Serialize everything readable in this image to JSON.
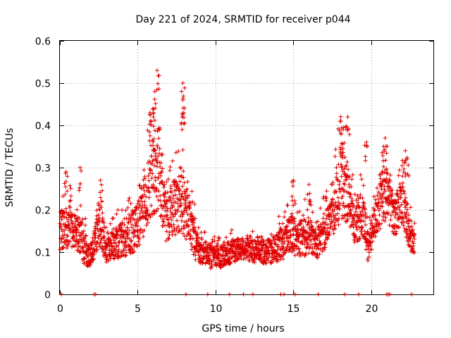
{
  "chart_data": {
    "type": "scatter",
    "title": "Day 221 of 2024, SRMTID for receiver p044",
    "xlabel": "GPS time / hours",
    "ylabel": "SRMTID / TECUs",
    "xlim": [
      0,
      24
    ],
    "ylim": [
      0,
      0.6
    ],
    "xticks": [
      "0",
      "5",
      "10",
      "15",
      "20"
    ],
    "yticks": [
      "0",
      "0.1",
      "0.2",
      "0.3",
      "0.4",
      "0.5",
      "0.6"
    ],
    "grid": true,
    "marker": "+",
    "color": "#e00000",
    "series": [
      {
        "name": "SRMTID",
        "profile": [
          [
            0.0,
            0.15,
            0.05
          ],
          [
            0.5,
            0.16,
            0.06
          ],
          [
            1.0,
            0.15,
            0.05
          ],
          [
            1.5,
            0.12,
            0.05
          ],
          [
            1.8,
            0.09,
            0.03
          ],
          [
            2.1,
            0.1,
            0.03
          ],
          [
            2.5,
            0.17,
            0.06
          ],
          [
            3.0,
            0.11,
            0.04
          ],
          [
            3.5,
            0.12,
            0.04
          ],
          [
            4.0,
            0.13,
            0.05
          ],
          [
            4.5,
            0.14,
            0.05
          ],
          [
            5.0,
            0.16,
            0.06
          ],
          [
            5.5,
            0.22,
            0.08
          ],
          [
            6.0,
            0.28,
            0.1
          ],
          [
            6.4,
            0.3,
            0.12
          ],
          [
            6.8,
            0.18,
            0.06
          ],
          [
            7.2,
            0.2,
            0.07
          ],
          [
            7.8,
            0.22,
            0.08
          ],
          [
            8.3,
            0.18,
            0.07
          ],
          [
            8.8,
            0.11,
            0.04
          ],
          [
            9.3,
            0.1,
            0.03
          ],
          [
            9.8,
            0.085,
            0.03
          ],
          [
            10.3,
            0.09,
            0.03
          ],
          [
            11.0,
            0.1,
            0.03
          ],
          [
            11.8,
            0.11,
            0.03
          ],
          [
            12.5,
            0.1,
            0.03
          ],
          [
            13.2,
            0.1,
            0.03
          ],
          [
            14.0,
            0.11,
            0.04
          ],
          [
            14.8,
            0.14,
            0.05
          ],
          [
            15.5,
            0.13,
            0.05
          ],
          [
            16.0,
            0.14,
            0.05
          ],
          [
            16.5,
            0.12,
            0.04
          ],
          [
            17.0,
            0.15,
            0.05
          ],
          [
            17.5,
            0.18,
            0.05
          ],
          [
            18.0,
            0.26,
            0.1
          ],
          [
            18.5,
            0.24,
            0.08
          ],
          [
            19.0,
            0.16,
            0.05
          ],
          [
            19.5,
            0.2,
            0.07
          ],
          [
            19.8,
            0.11,
            0.04
          ],
          [
            20.2,
            0.17,
            0.05
          ],
          [
            20.6,
            0.22,
            0.07
          ],
          [
            21.0,
            0.24,
            0.07
          ],
          [
            21.5,
            0.18,
            0.05
          ],
          [
            22.0,
            0.22,
            0.06
          ],
          [
            22.5,
            0.14,
            0.04
          ],
          [
            22.8,
            0.12,
            0.03
          ]
        ],
        "peaks": [
          [
            6.25,
            0.53
          ],
          [
            6.1,
            0.48
          ],
          [
            6.0,
            0.42
          ],
          [
            5.8,
            0.43
          ],
          [
            7.9,
            0.5
          ],
          [
            7.9,
            0.46
          ],
          [
            7.85,
            0.42
          ],
          [
            18.5,
            0.42
          ],
          [
            18.0,
            0.41
          ],
          [
            18.2,
            0.39
          ],
          [
            19.7,
            0.36
          ],
          [
            20.9,
            0.37
          ],
          [
            20.8,
            0.35
          ],
          [
            22.2,
            0.34
          ],
          [
            22.3,
            0.32
          ],
          [
            1.3,
            0.3
          ],
          [
            0.4,
            0.29
          ],
          [
            2.6,
            0.27
          ],
          [
            15.0,
            0.27
          ],
          [
            16.0,
            0.26
          ]
        ],
        "zero_points": [
          0.1,
          2.2,
          2.3,
          8.1,
          9.5,
          10.9,
          11.8,
          12.4,
          14.2,
          14.4,
          15.1,
          16.6,
          18.3,
          19.2,
          21.0,
          21.1,
          21.2,
          22.6
        ]
      }
    ]
  }
}
